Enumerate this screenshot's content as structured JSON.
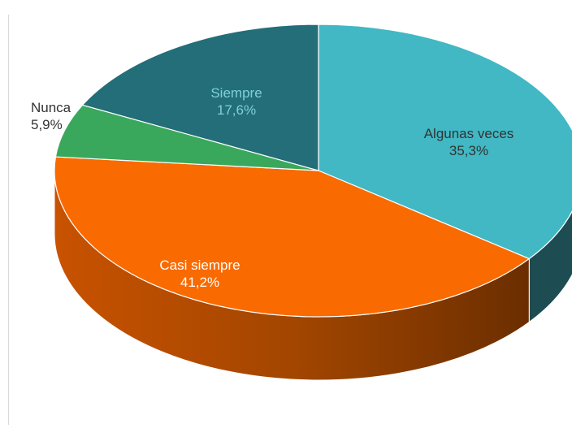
{
  "chart_data": {
    "type": "pie",
    "title": "",
    "slices": [
      {
        "label": "Algunas veces",
        "value": 35.3,
        "value_label": "35,3%",
        "color": "#41b8c4",
        "side_color": "#1d4c52",
        "text_color": "#333333"
      },
      {
        "label": "Casi siempre",
        "value": 41.2,
        "value_label": "41,2%",
        "color": "#f96a00",
        "side_color": "#b24b00",
        "text_color": "#ffffff"
      },
      {
        "label": "Nunca",
        "value": 5.9,
        "value_label": "5,9%",
        "color": "#3aa85c",
        "side_color": "#1f6a36",
        "text_color": "#333333"
      },
      {
        "label": "Siempre",
        "value": 17.6,
        "value_label": "17,6%",
        "color": "#236e78",
        "side_color": "#163f45",
        "text_color": "#7fd0d8"
      }
    ],
    "style": "3d"
  }
}
